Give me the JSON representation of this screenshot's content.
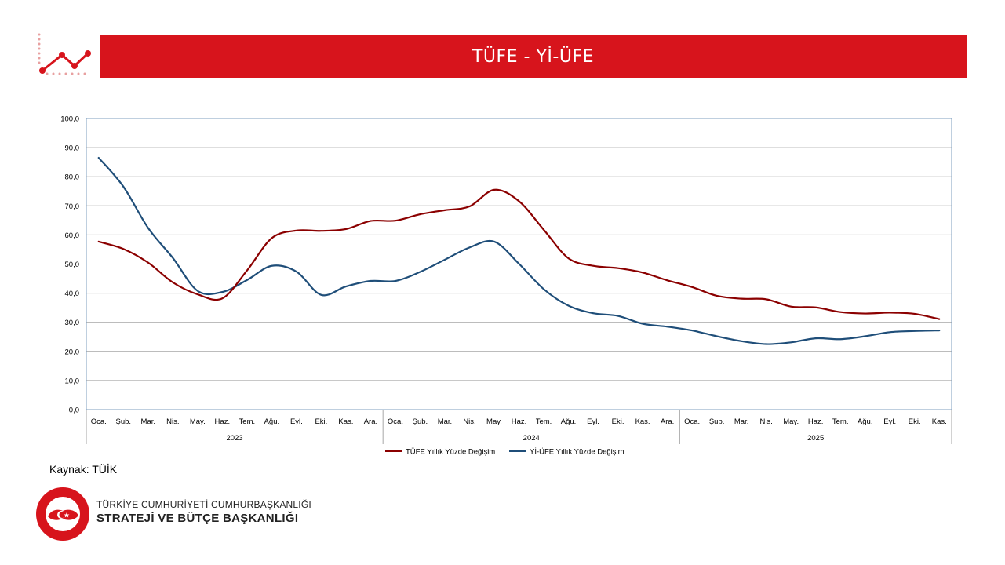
{
  "header": {
    "title": "TÜFE - Yİ-ÜFE"
  },
  "footer": {
    "source": "Kaynak: TÜİK",
    "org_line1": "TÜRKİYE CUMHURİYETİ CUMHURBAŞKANLIĞI",
    "org_line2": "STRATEJİ VE BÜTÇE BAŞKANLIĞI",
    "seal_text": "T.C. CUMHURBAŞKANLIĞI STRATEJİ VE BÜTÇE BAŞKANLIĞI"
  },
  "colors": {
    "banner": "#d7141c",
    "tufe": "#8b0000",
    "yiufe": "#1f4e79",
    "grid": "#a6a6a6",
    "plot_border": "#7f9fbf"
  },
  "icons": {
    "header_logo": "line-chart-icon",
    "seal": "emblem-icon"
  },
  "chart_data": {
    "type": "line",
    "ylim": [
      0,
      100
    ],
    "yticks": [
      "0,0",
      "10,0",
      "20,0",
      "30,0",
      "40,0",
      "50,0",
      "60,0",
      "70,0",
      "80,0",
      "90,0",
      "100,0"
    ],
    "categories": [
      "Oca.",
      "Şub.",
      "Mar.",
      "Nis.",
      "May.",
      "Haz.",
      "Tem.",
      "Ağu.",
      "Eyl.",
      "Eki.",
      "Kas.",
      "Ara.",
      "Oca.",
      "Şub.",
      "Mar.",
      "Nis.",
      "May.",
      "Haz.",
      "Tem.",
      "Ağu.",
      "Eyl.",
      "Eki.",
      "Kas.",
      "Ara.",
      "Oca.",
      "Şub.",
      "Mar.",
      "Nis.",
      "May.",
      "Haz.",
      "Tem.",
      "Ağu.",
      "Eyl.",
      "Eki.",
      "Kas."
    ],
    "groups": [
      {
        "label": "2023",
        "count": 12
      },
      {
        "label": "2024",
        "count": 12
      },
      {
        "label": "2025",
        "count": 11
      }
    ],
    "legend_position": "bottom",
    "grid": true,
    "series": [
      {
        "name": "TÜFE Yıllık Yüzde Değişim",
        "color": "#8b0000",
        "values": [
          57.7,
          55.2,
          50.5,
          43.7,
          39.6,
          38.2,
          47.8,
          58.9,
          61.5,
          61.4,
          62.0,
          64.8,
          64.9,
          67.1,
          68.5,
          69.8,
          75.5,
          71.6,
          61.8,
          52.0,
          49.4,
          48.6,
          47.1,
          44.4,
          42.1,
          39.1,
          38.1,
          37.9,
          35.4,
          35.1,
          33.5,
          33.0,
          33.3,
          32.9,
          31.1
        ]
      },
      {
        "name": "Yİ-ÜFE Yıllık Yüzde Değişim",
        "color": "#1f4e79",
        "values": [
          86.5,
          76.6,
          62.4,
          52.1,
          40.8,
          40.4,
          44.5,
          49.4,
          47.4,
          39.4,
          42.3,
          44.2,
          44.2,
          47.3,
          51.5,
          55.7,
          57.7,
          50.1,
          41.4,
          35.7,
          33.1,
          32.2,
          29.5,
          28.5,
          27.2,
          25.2,
          23.5,
          22.5,
          23.1,
          24.5,
          24.2,
          25.2,
          26.6,
          27.0,
          27.2
        ]
      }
    ]
  }
}
